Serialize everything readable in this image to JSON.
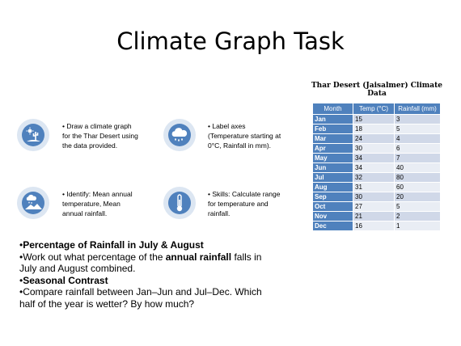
{
  "slide": {
    "title": "Climate Graph Task"
  },
  "table": {
    "title": "Thar Desert (Jaisalmer) Climate Data",
    "headers": [
      "Month",
      "Temp (°C)",
      "Rainfall (mm)"
    ],
    "rows": [
      {
        "month": "Jan",
        "temp": "15",
        "rain": "3"
      },
      {
        "month": "Feb",
        "temp": "18",
        "rain": "5"
      },
      {
        "month": "Mar",
        "temp": "24",
        "rain": "4"
      },
      {
        "month": "Apr",
        "temp": "30",
        "rain": "6"
      },
      {
        "month": "May",
        "temp": "34",
        "rain": "7"
      },
      {
        "month": "Jun",
        "temp": "34",
        "rain": "40"
      },
      {
        "month": "Jul",
        "temp": "32",
        "rain": "80"
      },
      {
        "month": "Aug",
        "temp": "31",
        "rain": "60"
      },
      {
        "month": "Sep",
        "temp": "30",
        "rain": "20"
      },
      {
        "month": "Oct",
        "temp": "27",
        "rain": "5"
      },
      {
        "month": "Nov",
        "temp": "21",
        "rain": "2"
      },
      {
        "month": "Dec",
        "temp": "16",
        "rain": "1"
      }
    ]
  },
  "tasks": [
    {
      "icon": "desert-cactus-icon",
      "lines": [
        "• Draw a climate graph",
        "for the Thar Desert using",
        "the data provided."
      ]
    },
    {
      "icon": "rain-cloud-icon",
      "lines": [
        "• Label axes",
        "(Temperature starting at",
        "0°C, Rainfall in mm)."
      ]
    },
    {
      "icon": "landscape-weather-icon",
      "lines": [
        "• Identify: Mean annual",
        "temperature, Mean",
        "annual rainfall."
      ]
    },
    {
      "icon": "thermometer-icon",
      "lines": [
        "• Skills: Calculate range",
        "for temperature and",
        "rainfall."
      ]
    }
  ],
  "questions": {
    "q1_heading_bullet": "•",
    "q1_heading": "Percentage of Rainfall in July & August",
    "q1_a": "•Work out what percentage of the ",
    "q1_b": "annual rainfall",
    "q1_c": " falls in",
    "q1_d": "July and August combined.",
    "q2_heading_bullet": "•",
    "q2_heading": "Seasonal Contrast",
    "q2_a": "•Compare rainfall between Jan–Jun and Jul–Dec. Which",
    "q2_b": "half of the year is wetter? By how much?"
  },
  "colors": {
    "accent": "#4f81bd",
    "icon_ring": "#dce6f2",
    "row_odd": "#d0d8e8",
    "row_even": "#e9edf4"
  }
}
